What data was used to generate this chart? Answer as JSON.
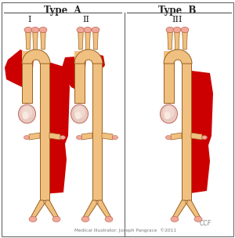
{
  "title_a": "Type  A",
  "title_b": "Type  B",
  "label_I": "I",
  "label_II": "II",
  "label_III": "III",
  "footer": "Medical Illustrator: Joseph Pangrace  ©2011",
  "footer_ccf": "CCF",
  "bg_color": "#ffffff",
  "aorta_fill": "#F0C080",
  "aorta_stroke": "#9B6020",
  "aorta_stroke2": "#C07830",
  "dissection_red": "#CC0000",
  "dissection_red2": "#AA0000",
  "branch_pink": "#F0A898",
  "branch_stroke": "#C06050",
  "heart_fill": "#E8C8C0",
  "heart_stroke": "#C06858",
  "heart_inner": "#F0D8D0",
  "label_color": "#222222",
  "line_color": "#555555",
  "footer_color": "#777777",
  "fig_width": 3.0,
  "fig_height": 3.03
}
